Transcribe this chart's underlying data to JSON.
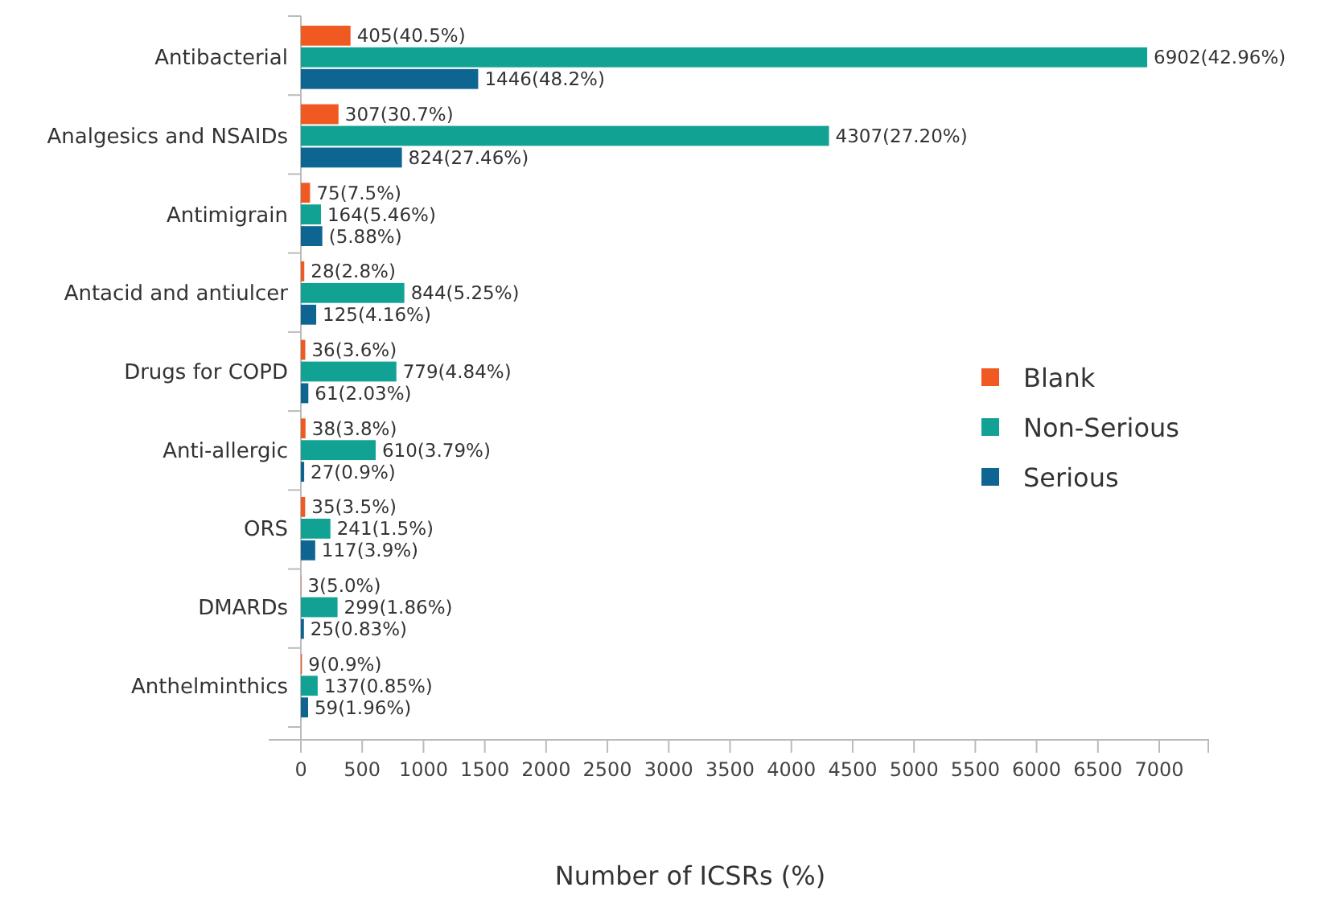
{
  "chart_data": {
    "type": "bar",
    "orientation": "horizontal",
    "xlabel": "Number of ICSRs (%)",
    "categories": [
      "Antibacterial",
      "Analgesics and NSAIDs",
      "Antimigrain",
      "Antacid and antiulcer",
      "Drugs for COPD",
      "Anti-allergic",
      "ORS",
      "DMARDs",
      "Anthelminthics"
    ],
    "series": [
      {
        "name": "Blank",
        "color": "#f05a22",
        "values": [
          405,
          307,
          75,
          28,
          36,
          38,
          35,
          3,
          9
        ],
        "value_labels": [
          "405(40.5%)",
          "307(30.7%)",
          "75(7.5%)",
          "28(2.8%)",
          "36(3.6%)",
          "38(3.8%)",
          "35(3.5%)",
          "3(5.0%)",
          "9(0.9%)"
        ]
      },
      {
        "name": "Non-Serious",
        "color": "#12a294",
        "values": [
          6902,
          4307,
          164,
          844,
          779,
          610,
          241,
          299,
          137
        ],
        "value_labels": [
          "6902(42.96%)",
          "4307(27.20%)",
          "164(5.46%)",
          "844(5.25%)",
          "779(4.84%)",
          "610(3.79%)",
          "241(1.5%)",
          "299(1.86%)",
          "137(0.85%)"
        ]
      },
      {
        "name": "Serious",
        "color": "#0f6591",
        "values": [
          1446,
          824,
          175,
          125,
          61,
          27,
          117,
          25,
          59
        ],
        "value_labels": [
          "1446(48.2%)",
          "824(27.46%)",
          null,
          "125(4.16%)",
          "61(2.03%)",
          "27(0.9%)",
          "117(3.9%)",
          "25(0.83%)",
          "59(1.96%)"
        ]
      }
    ],
    "xlim": [
      0,
      7400
    ],
    "xticks": [
      0,
      500,
      1000,
      1500,
      2000,
      2500,
      3000,
      3500,
      4000,
      4500,
      5000,
      5500,
      6000,
      6500,
      7000
    ],
    "annotations": [
      {
        "text": "(5.88%)",
        "x": 175,
        "y": "Antimigrain"
      }
    ],
    "grid": false,
    "legend": "right"
  }
}
